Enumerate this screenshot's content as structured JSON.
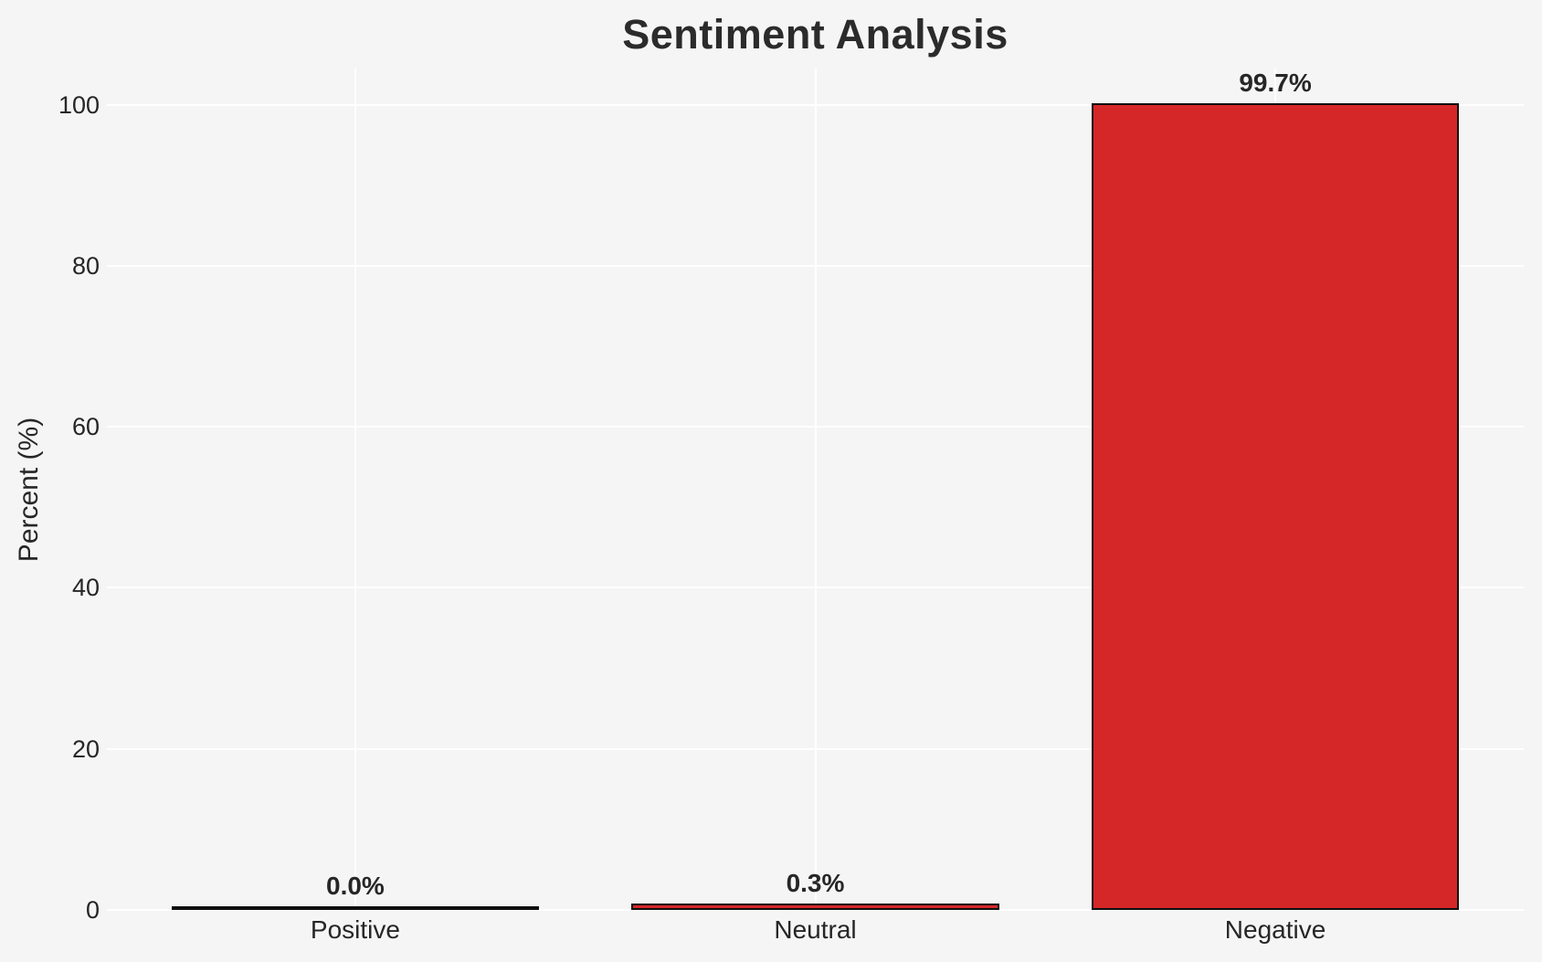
{
  "chart_data": {
    "type": "bar",
    "title": "Sentiment Analysis",
    "xlabel": "",
    "ylabel": "Percent (%)",
    "categories": [
      "Positive",
      "Neutral",
      "Negative"
    ],
    "values": [
      0.0,
      0.3,
      99.7
    ],
    "value_labels": [
      "0.0%",
      "0.3%",
      "99.7%"
    ],
    "yticks": [
      0,
      20,
      40,
      60,
      80,
      100
    ],
    "ytick_labels": [
      "0",
      "20",
      "40",
      "60",
      "80",
      "100"
    ],
    "ylim": [
      0,
      104.5
    ],
    "grid": "both",
    "legend": "none",
    "colors": {
      "bar_fill": "#d62728",
      "bar_edge": "#0f0f0f",
      "background": "#f5f5f6",
      "gridline": "#ffffff",
      "text": "#262626"
    }
  }
}
